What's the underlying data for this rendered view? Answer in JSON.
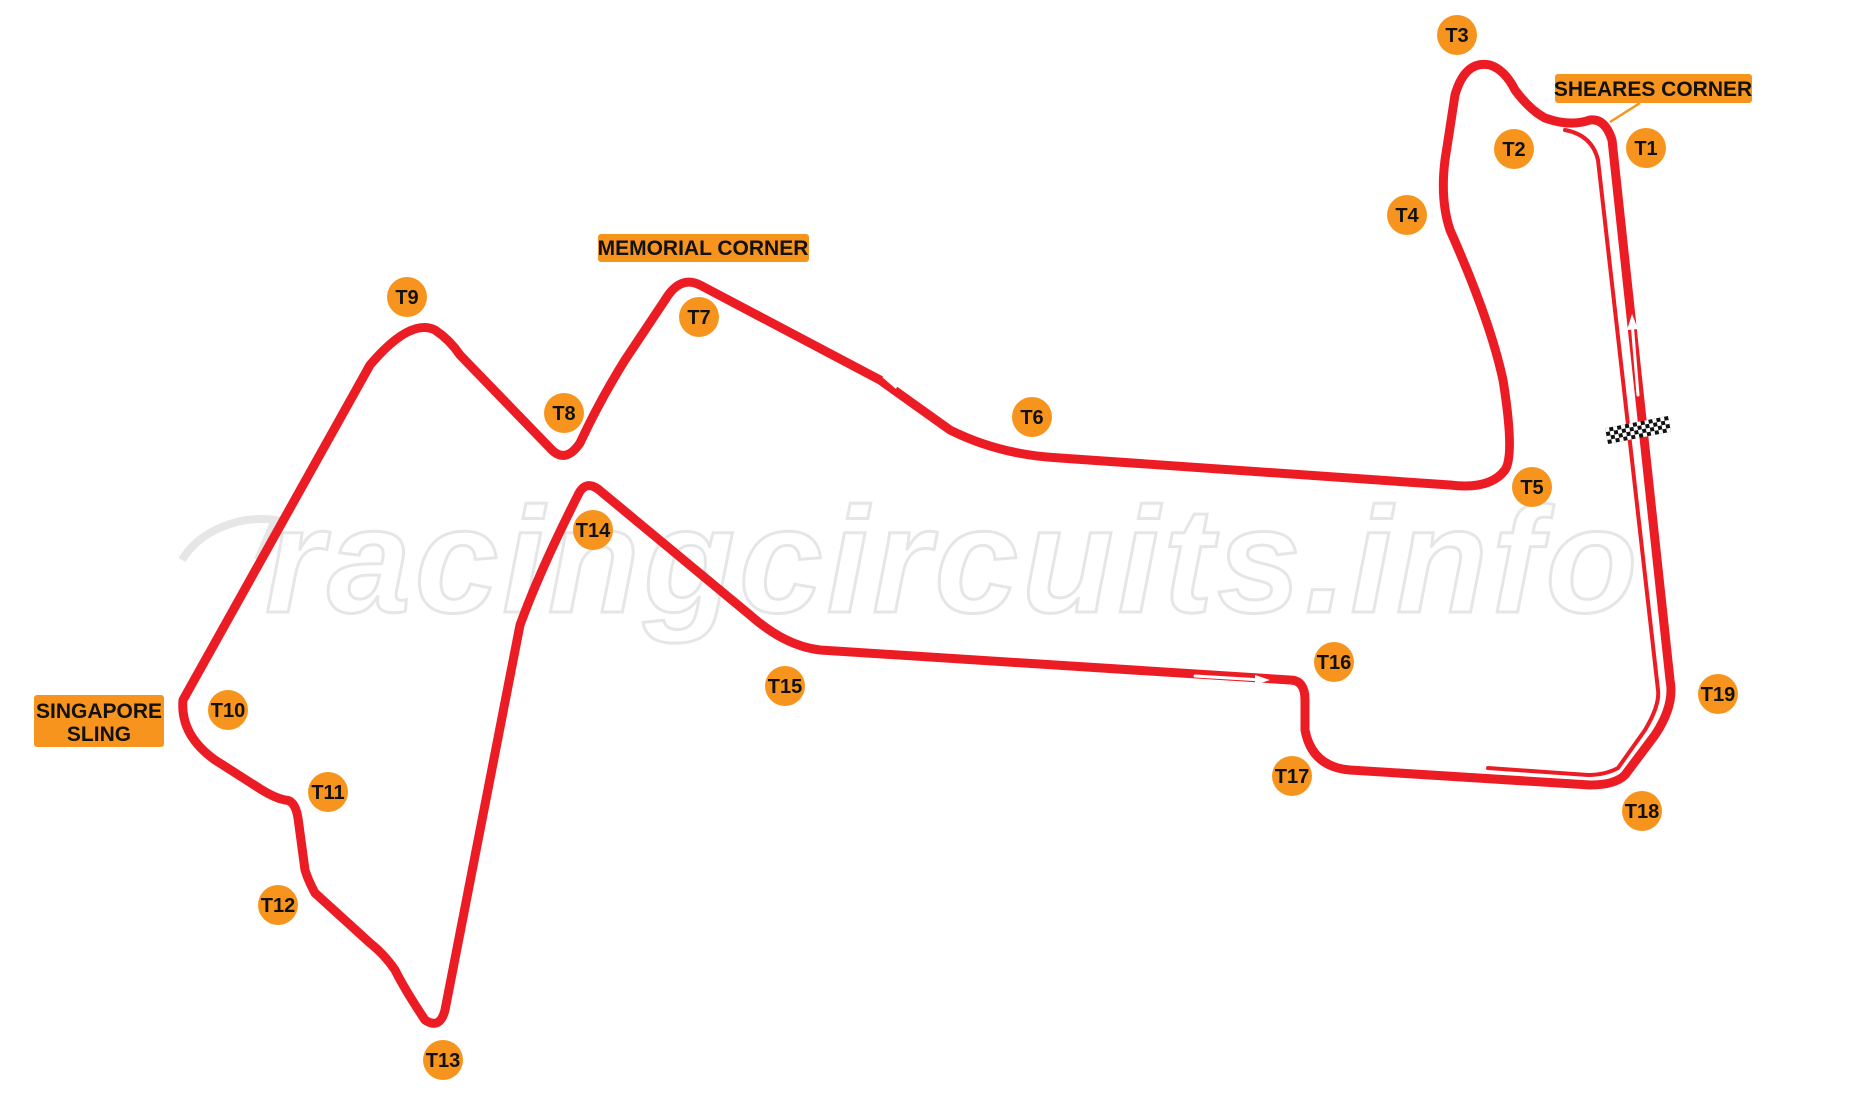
{
  "map": {
    "watermark": "racingcircuits.info",
    "colors": {
      "track": "#ec1c24",
      "marker": "#f7941d",
      "label_text": "#111111",
      "watermark": "#e6e6e6",
      "background": "#ffffff"
    },
    "turns": [
      "T1",
      "T2",
      "T3",
      "T4",
      "T5",
      "T6",
      "T7",
      "T8",
      "T9",
      "T10",
      "T11",
      "T12",
      "T13",
      "T14",
      "T15",
      "T16",
      "T17",
      "T18",
      "T19"
    ],
    "corner_names": {
      "sheares": "SHEARES CORNER",
      "memorial": "MEMORIAL CORNER",
      "singapore_sling_line1": "SINGAPORE",
      "singapore_sling_line2": "SLING"
    },
    "icons": {
      "start_finish": "checkered-flag-line-icon",
      "direction": "direction-arrow-icon"
    }
  }
}
